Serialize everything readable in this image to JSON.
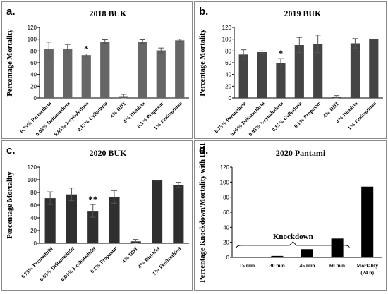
{
  "chart_data": [
    {
      "type": "bar",
      "panel_label": "a.",
      "title": "2018 BUK",
      "ylabel": "Percentage Mortality",
      "ylim": [
        0,
        120
      ],
      "yticks": [
        0,
        20,
        40,
        60,
        80,
        100,
        120
      ],
      "bar_color": "#666666",
      "categories": [
        "0.75% Permethrin",
        "0.05% Deltamethrin",
        "0.05% λ-cyhalothrin",
        "0.15% Cyfluthrin",
        "4% DDT",
        "4% Dieldrin",
        "0.1% Propoxur",
        "1% Fenitrothion"
      ],
      "values": [
        83,
        83,
        73,
        96,
        3,
        96,
        81,
        98
      ],
      "errors": [
        12,
        8,
        2,
        3,
        3,
        3,
        4,
        2
      ],
      "significance": [
        {
          "category": "0.05% λ-cyhalothrin",
          "label": "*"
        }
      ]
    },
    {
      "type": "bar",
      "panel_label": "b.",
      "title": "2019 BUK",
      "ylabel": "Percentage Mortality",
      "ylim": [
        0,
        120
      ],
      "yticks": [
        0,
        20,
        40,
        60,
        80,
        100,
        120
      ],
      "bar_color": "#444444",
      "categories": [
        "0.75% Permethrin",
        "0.05% Deltamethrin",
        "0.05% λ-cyhalothrin",
        "0.15% Cyfluthrin",
        "0.1% Propoxur",
        "4% DDT",
        "4% Dieldrin",
        "1% Fenitrothion"
      ],
      "values": [
        74,
        78,
        59,
        90,
        92,
        2,
        93,
        100
      ],
      "errors": [
        8,
        2,
        8,
        13,
        15,
        2,
        8,
        0
      ],
      "significance": [
        {
          "category": "0.05% λ-cyhalothrin",
          "label": "*"
        }
      ]
    },
    {
      "type": "bar",
      "panel_label": "c.",
      "title": "2020 BUK",
      "ylabel": "Percentage Mortality",
      "ylim": [
        0,
        120
      ],
      "yticks": [
        0,
        20,
        40,
        60,
        80,
        100,
        120
      ],
      "bar_color": "#2f2f2f",
      "categories": [
        "0.75% Permethrin",
        "0.05% Deltamethrin",
        "0.05% λ-cyhalothrin",
        "0.1% Propoxur",
        "4% DDT",
        "4% Dieldrin",
        "1% Fenitrothion"
      ],
      "values": [
        71,
        77,
        51,
        73,
        3,
        99,
        92
      ],
      "errors": [
        10,
        10,
        10,
        10,
        3,
        0,
        4
      ],
      "significance": [
        {
          "category": "0.05% λ-cyhalothrin",
          "label": "**"
        }
      ]
    },
    {
      "type": "bar",
      "panel_label": "d.",
      "title": "2020 Pantami",
      "ylabel": "Percentage Knockdown/Mortality with DDT",
      "ylim": [
        0,
        120
      ],
      "yticks": [
        0,
        20,
        40,
        60,
        80,
        100,
        120
      ],
      "bar_color": "#000000",
      "categories": [
        "15 min",
        "30 min",
        "45 min",
        "60 min",
        "Mortality (24 h)"
      ],
      "values": [
        0,
        2,
        11,
        25,
        94
      ],
      "annotation": {
        "text": "Knockdown",
        "spans": [
          "15 min",
          "60 min"
        ]
      }
    }
  ]
}
